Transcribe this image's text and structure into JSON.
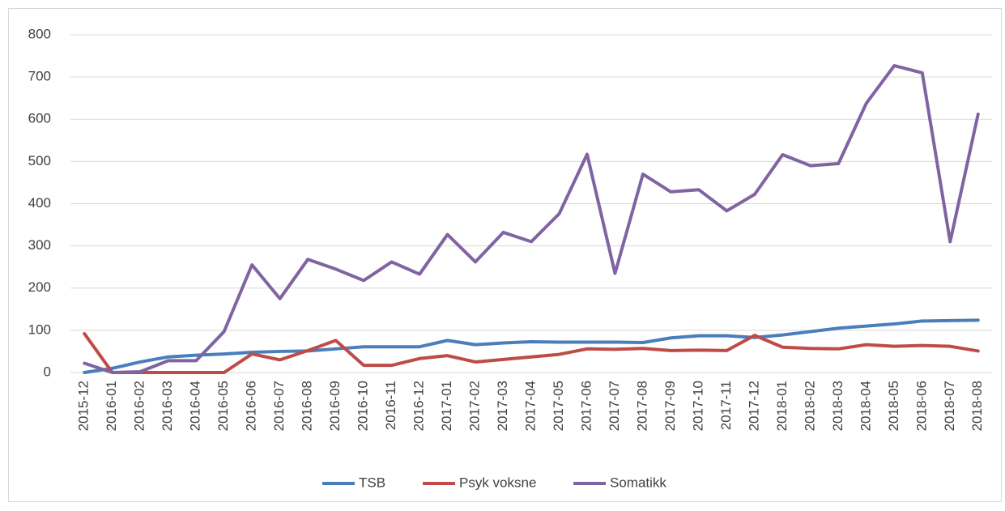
{
  "chart_data": {
    "type": "line",
    "categories": [
      "2015-12",
      "2016-01",
      "2016-02",
      "2016-03",
      "2016-04",
      "2016-05",
      "2016-06",
      "2016-07",
      "2016-08",
      "2016-09",
      "2016-10",
      "2016-11",
      "2016-12",
      "2017-01",
      "2017-02",
      "2017-03",
      "2017-04",
      "2017-05",
      "2017-06",
      "2017-07",
      "2017-08",
      "2017-09",
      "2017-10",
      "2017-11",
      "2017-12",
      "2018-01",
      "2018-02",
      "2018-03",
      "2018-04",
      "2018-05",
      "2018-06",
      "2018-07",
      "2018-08"
    ],
    "series": [
      {
        "name": "TSB",
        "color": "#4a7ebb",
        "values": [
          0,
          10,
          25,
          37,
          41,
          44,
          48,
          50,
          51,
          56,
          61,
          61,
          61,
          76,
          66,
          70,
          73,
          72,
          72,
          72,
          71,
          82,
          87,
          87,
          83,
          89,
          97,
          105,
          110,
          115,
          122,
          123,
          124
        ]
      },
      {
        "name": "Psyk voksne",
        "color": "#be4b48",
        "values": [
          92,
          0,
          0,
          0,
          0,
          0,
          44,
          30,
          52,
          76,
          17,
          17,
          33,
          40,
          25,
          31,
          37,
          43,
          56,
          55,
          57,
          52,
          53,
          52,
          88,
          60,
          57,
          56,
          66,
          62,
          64,
          62,
          51
        ]
      },
      {
        "name": "Somatikk",
        "color": "#8064a2",
        "values": [
          22,
          0,
          2,
          28,
          28,
          97,
          255,
          175,
          268,
          245,
          218,
          262,
          233,
          327,
          262,
          332,
          310,
          376,
          517,
          235,
          470,
          428,
          433,
          383,
          422,
          516,
          490,
          495,
          638,
          727,
          710,
          310,
          612
        ]
      }
    ],
    "ylim": [
      0,
      800
    ],
    "yticks": [
      0,
      100,
      200,
      300,
      400,
      500,
      600,
      700,
      800
    ],
    "grid": true,
    "legend": "bottom"
  }
}
